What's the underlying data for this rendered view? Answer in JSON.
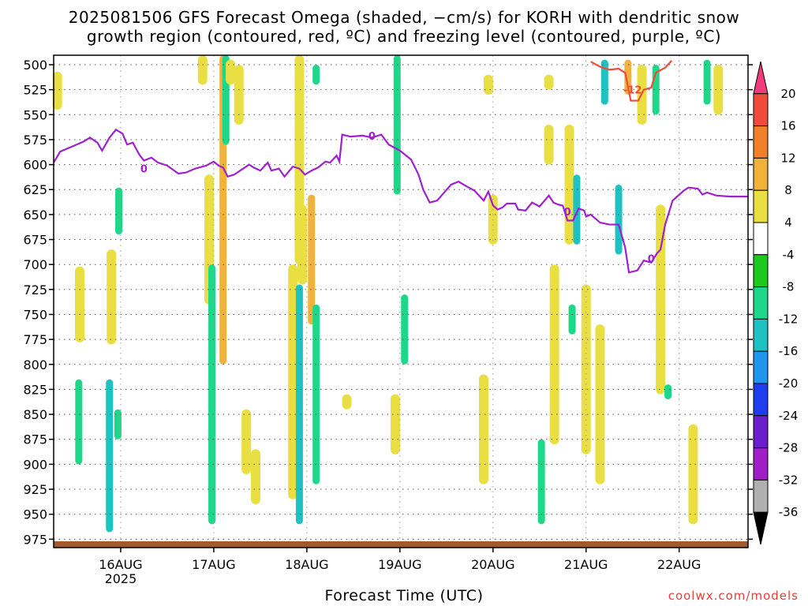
{
  "title": {
    "line1": "2025081506 GFS Forecast Omega (shaded, −cm/s) for KORH with dendritic snow",
    "line2": "growth region (contoured, red, ºC) and freezing level (contoured, purple, ºC)"
  },
  "xlabel": "Forecast Time (UTC)",
  "credit": "coolwx.com/models",
  "chart_data": {
    "type": "heatmap",
    "x_axis": {
      "ticks": [
        "16AUG",
        "17AUG",
        "18AUG",
        "19AUG",
        "20AUG",
        "21AUG",
        "22AUG"
      ],
      "year_label": "2025",
      "range_days": [
        -0.72,
        6.74
      ]
    },
    "y_axis": {
      "ticks": [
        500,
        525,
        550,
        575,
        600,
        625,
        650,
        675,
        700,
        725,
        750,
        775,
        800,
        825,
        850,
        875,
        900,
        925,
        950,
        975
      ],
      "range": [
        500,
        985
      ],
      "grid": true
    },
    "colorbar": {
      "labels": [
        20,
        16,
        12,
        8,
        4,
        -4,
        -8,
        -12,
        -16,
        -20,
        -24,
        -28,
        -32,
        -36
      ],
      "colors": [
        "#f03a7a",
        "#f04a3a",
        "#f0802a",
        "#f0b23a",
        "#eadf42",
        "#ffffff",
        "#1ec91e",
        "#1ed88a",
        "#1ec2c2",
        "#1e96f0",
        "#1e3cf0",
        "#6a1ecc",
        "#a01ec8",
        "#b0b0b0",
        "#000000"
      ]
    },
    "freezing_level": {
      "color": "#a020d0",
      "label": "0",
      "points": [
        [
          -0.72,
          598
        ],
        [
          -0.65,
          587
        ],
        [
          -0.55,
          583
        ],
        [
          -0.4,
          577
        ],
        [
          -0.33,
          573
        ],
        [
          -0.25,
          578
        ],
        [
          -0.2,
          586
        ],
        [
          -0.12,
          573
        ],
        [
          -0.05,
          565
        ],
        [
          0.02,
          569
        ],
        [
          0.07,
          580
        ],
        [
          0.13,
          578
        ],
        [
          0.2,
          590
        ],
        [
          0.25,
          596
        ],
        [
          0.33,
          593
        ],
        [
          0.4,
          598
        ],
        [
          0.5,
          601
        ],
        [
          0.62,
          609
        ],
        [
          0.7,
          608
        ],
        [
          0.8,
          604
        ],
        [
          0.92,
          601
        ],
        [
          1.0,
          597
        ],
        [
          1.05,
          601
        ],
        [
          1.1,
          603
        ],
        [
          1.15,
          612
        ],
        [
          1.22,
          610
        ],
        [
          1.3,
          605
        ],
        [
          1.38,
          600
        ],
        [
          1.43,
          603
        ],
        [
          1.5,
          606
        ],
        [
          1.58,
          598
        ],
        [
          1.62,
          606
        ],
        [
          1.7,
          604
        ],
        [
          1.76,
          612
        ],
        [
          1.85,
          602
        ],
        [
          1.92,
          604
        ],
        [
          1.98,
          610
        ],
        [
          2.05,
          606
        ],
        [
          2.12,
          603
        ],
        [
          2.2,
          597
        ],
        [
          2.25,
          598
        ],
        [
          2.32,
          591
        ],
        [
          2.35,
          597
        ],
        [
          2.38,
          570
        ],
        [
          2.47,
          572
        ],
        [
          2.6,
          571
        ],
        [
          2.7,
          573
        ],
        [
          2.8,
          570
        ],
        [
          2.88,
          580
        ],
        [
          3.0,
          586
        ],
        [
          3.12,
          595
        ],
        [
          3.2,
          610
        ],
        [
          3.25,
          625
        ],
        [
          3.32,
          638
        ],
        [
          3.4,
          636
        ],
        [
          3.55,
          620
        ],
        [
          3.63,
          617
        ],
        [
          3.72,
          622
        ],
        [
          3.8,
          626
        ],
        [
          3.9,
          636
        ],
        [
          3.95,
          627
        ],
        [
          4.0,
          641
        ],
        [
          4.05,
          645
        ],
        [
          4.1,
          643
        ],
        [
          4.15,
          639
        ],
        [
          4.24,
          639
        ],
        [
          4.27,
          645
        ],
        [
          4.35,
          646
        ],
        [
          4.42,
          638
        ],
        [
          4.5,
          642
        ],
        [
          4.6,
          631
        ],
        [
          4.65,
          638
        ],
        [
          4.7,
          640
        ],
        [
          4.75,
          641
        ],
        [
          4.8,
          656
        ],
        [
          4.86,
          656
        ],
        [
          4.92,
          644
        ],
        [
          4.98,
          646
        ],
        [
          5.0,
          652
        ],
        [
          5.05,
          650
        ],
        [
          5.15,
          658
        ],
        [
          5.25,
          660
        ],
        [
          5.35,
          660
        ],
        [
          5.42,
          683
        ],
        [
          5.46,
          708
        ],
        [
          5.55,
          706
        ],
        [
          5.62,
          696
        ],
        [
          5.7,
          698
        ],
        [
          5.76,
          689
        ],
        [
          5.8,
          685
        ],
        [
          5.85,
          660
        ],
        [
          5.93,
          636
        ],
        [
          6.05,
          626
        ],
        [
          6.1,
          623
        ],
        [
          6.2,
          624
        ],
        [
          6.25,
          630
        ],
        [
          6.3,
          628
        ],
        [
          6.4,
          631
        ],
        [
          6.55,
          632
        ],
        [
          6.74,
          632
        ]
      ],
      "labels_at": [
        [
          0.25,
          604
        ],
        [
          2.7,
          571
        ],
        [
          4.8,
          647
        ],
        [
          5.7,
          694
        ]
      ]
    },
    "dendritic_region": {
      "color": "#f04a3a",
      "label": "-12",
      "points": [
        [
          5.05,
          497
        ],
        [
          5.15,
          502
        ],
        [
          5.25,
          505
        ],
        [
          5.35,
          504
        ],
        [
          5.42,
          508
        ],
        [
          5.48,
          536
        ],
        [
          5.56,
          536
        ],
        [
          5.62,
          525
        ],
        [
          5.7,
          523
        ],
        [
          5.75,
          508
        ],
        [
          5.85,
          503
        ],
        [
          5.92,
          496
        ]
      ]
    },
    "omega_blobs": [
      {
        "x": -0.68,
        "y": [
          507,
          545
        ],
        "v": 6
      },
      {
        "x": -0.44,
        "y": [
          702,
          778
        ],
        "v": 6
      },
      {
        "x": -0.45,
        "y": [
          815,
          900
        ],
        "v": -8
      },
      {
        "x": -0.1,
        "y": [
          685,
          780
        ],
        "v": 6
      },
      {
        "x": -0.12,
        "y": [
          815,
          968
        ],
        "v": -12
      },
      {
        "x": -0.03,
        "y": [
          845,
          875
        ],
        "v": -8
      },
      {
        "x": -0.02,
        "y": [
          623,
          670
        ],
        "v": -8
      },
      {
        "x": 0.88,
        "y": [
          470,
          520
        ],
        "v": 6
      },
      {
        "x": 0.95,
        "y": [
          610,
          740
        ],
        "v": 6
      },
      {
        "x": 0.98,
        "y": [
          700,
          960
        ],
        "v": -8
      },
      {
        "x": 1.1,
        "y": [
          480,
          800
        ],
        "v": 10
      },
      {
        "x": 1.13,
        "y": [
          470,
          580
        ],
        "v": -8
      },
      {
        "x": 1.18,
        "y": [
          495,
          520
        ],
        "v": 6
      },
      {
        "x": 1.27,
        "y": [
          500,
          560
        ],
        "v": 6
      },
      {
        "x": 1.35,
        "y": [
          845,
          910
        ],
        "v": 6
      },
      {
        "x": 1.45,
        "y": [
          885,
          940
        ],
        "v": 6
      },
      {
        "x": 1.85,
        "y": [
          700,
          935
        ],
        "v": 6
      },
      {
        "x": 1.95,
        "y": [
          640,
          720
        ],
        "v": 6
      },
      {
        "x": 1.92,
        "y": [
          720,
          960
        ],
        "v": -12
      },
      {
        "x": 2.05,
        "y": [
          630,
          760
        ],
        "v": 10
      },
      {
        "x": 2.1,
        "y": [
          740,
          920
        ],
        "v": -8
      },
      {
        "x": 1.92,
        "y": [
          490,
          700
        ],
        "v": 6
      },
      {
        "x": 2.1,
        "y": [
          500,
          520
        ],
        "v": -8
      },
      {
        "x": 2.43,
        "y": [
          830,
          845
        ],
        "v": 6
      },
      {
        "x": 2.97,
        "y": [
          480,
          630
        ],
        "v": -8
      },
      {
        "x": 3.05,
        "y": [
          730,
          800
        ],
        "v": -8
      },
      {
        "x": 2.95,
        "y": [
          830,
          890
        ],
        "v": 6
      },
      {
        "x": 3.95,
        "y": [
          510,
          530
        ],
        "v": 6
      },
      {
        "x": 4.0,
        "y": [
          630,
          680
        ],
        "v": 6
      },
      {
        "x": 3.9,
        "y": [
          810,
          920
        ],
        "v": 6
      },
      {
        "x": 4.6,
        "y": [
          510,
          525
        ],
        "v": 6
      },
      {
        "x": 4.6,
        "y": [
          560,
          600
        ],
        "v": 6
      },
      {
        "x": 4.52,
        "y": [
          875,
          960
        ],
        "v": -8
      },
      {
        "x": 4.66,
        "y": [
          700,
          880
        ],
        "v": 6
      },
      {
        "x": 4.82,
        "y": [
          560,
          680
        ],
        "v": 6
      },
      {
        "x": 4.9,
        "y": [
          610,
          680
        ],
        "v": -12
      },
      {
        "x": 4.85,
        "y": [
          740,
          770
        ],
        "v": -8
      },
      {
        "x": 5.0,
        "y": [
          720,
          890
        ],
        "v": 6
      },
      {
        "x": 5.15,
        "y": [
          760,
          920
        ],
        "v": 6
      },
      {
        "x": 5.35,
        "y": [
          620,
          690
        ],
        "v": -12
      },
      {
        "x": 5.2,
        "y": [
          495,
          540
        ],
        "v": -12
      },
      {
        "x": 5.45,
        "y": [
          495,
          530
        ],
        "v": 10
      },
      {
        "x": 5.6,
        "y": [
          500,
          560
        ],
        "v": 6
      },
      {
        "x": 5.75,
        "y": [
          500,
          550
        ],
        "v": -8
      },
      {
        "x": 5.8,
        "y": [
          640,
          830
        ],
        "v": 6
      },
      {
        "x": 5.88,
        "y": [
          820,
          835
        ],
        "v": -8
      },
      {
        "x": 6.15,
        "y": [
          860,
          960
        ],
        "v": 6
      },
      {
        "x": 6.3,
        "y": [
          495,
          540
        ],
        "v": -8
      },
      {
        "x": 6.42,
        "y": [
          500,
          550
        ],
        "v": 6
      }
    ]
  }
}
